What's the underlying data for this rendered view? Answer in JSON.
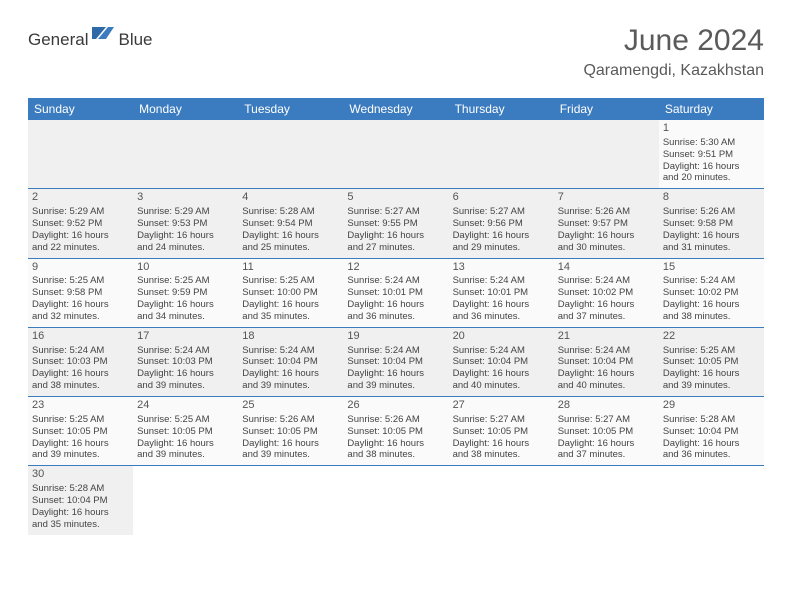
{
  "header": {
    "logo_part1": "General",
    "logo_part2": "Blue",
    "month_title": "June 2024",
    "location": "Qaramengdi, Kazakhstan"
  },
  "calendar": {
    "day_headers": [
      "Sunday",
      "Monday",
      "Tuesday",
      "Wednesday",
      "Thursday",
      "Friday",
      "Saturday"
    ],
    "header_bg": "#3b7bbf",
    "header_fg": "#ffffff",
    "border_color": "#3b7bbf",
    "row_bg_odd": "#fafafa",
    "row_bg_even": "#f0f0f0",
    "font_size_cell": 9.5,
    "weeks": [
      [
        null,
        null,
        null,
        null,
        null,
        null,
        {
          "n": "1",
          "sr": "Sunrise: 5:30 AM",
          "ss": "Sunset: 9:51 PM",
          "d1": "Daylight: 16 hours",
          "d2": "and 20 minutes."
        }
      ],
      [
        {
          "n": "2",
          "sr": "Sunrise: 5:29 AM",
          "ss": "Sunset: 9:52 PM",
          "d1": "Daylight: 16 hours",
          "d2": "and 22 minutes."
        },
        {
          "n": "3",
          "sr": "Sunrise: 5:29 AM",
          "ss": "Sunset: 9:53 PM",
          "d1": "Daylight: 16 hours",
          "d2": "and 24 minutes."
        },
        {
          "n": "4",
          "sr": "Sunrise: 5:28 AM",
          "ss": "Sunset: 9:54 PM",
          "d1": "Daylight: 16 hours",
          "d2": "and 25 minutes."
        },
        {
          "n": "5",
          "sr": "Sunrise: 5:27 AM",
          "ss": "Sunset: 9:55 PM",
          "d1": "Daylight: 16 hours",
          "d2": "and 27 minutes."
        },
        {
          "n": "6",
          "sr": "Sunrise: 5:27 AM",
          "ss": "Sunset: 9:56 PM",
          "d1": "Daylight: 16 hours",
          "d2": "and 29 minutes."
        },
        {
          "n": "7",
          "sr": "Sunrise: 5:26 AM",
          "ss": "Sunset: 9:57 PM",
          "d1": "Daylight: 16 hours",
          "d2": "and 30 minutes."
        },
        {
          "n": "8",
          "sr": "Sunrise: 5:26 AM",
          "ss": "Sunset: 9:58 PM",
          "d1": "Daylight: 16 hours",
          "d2": "and 31 minutes."
        }
      ],
      [
        {
          "n": "9",
          "sr": "Sunrise: 5:25 AM",
          "ss": "Sunset: 9:58 PM",
          "d1": "Daylight: 16 hours",
          "d2": "and 32 minutes."
        },
        {
          "n": "10",
          "sr": "Sunrise: 5:25 AM",
          "ss": "Sunset: 9:59 PM",
          "d1": "Daylight: 16 hours",
          "d2": "and 34 minutes."
        },
        {
          "n": "11",
          "sr": "Sunrise: 5:25 AM",
          "ss": "Sunset: 10:00 PM",
          "d1": "Daylight: 16 hours",
          "d2": "and 35 minutes."
        },
        {
          "n": "12",
          "sr": "Sunrise: 5:24 AM",
          "ss": "Sunset: 10:01 PM",
          "d1": "Daylight: 16 hours",
          "d2": "and 36 minutes."
        },
        {
          "n": "13",
          "sr": "Sunrise: 5:24 AM",
          "ss": "Sunset: 10:01 PM",
          "d1": "Daylight: 16 hours",
          "d2": "and 36 minutes."
        },
        {
          "n": "14",
          "sr": "Sunrise: 5:24 AM",
          "ss": "Sunset: 10:02 PM",
          "d1": "Daylight: 16 hours",
          "d2": "and 37 minutes."
        },
        {
          "n": "15",
          "sr": "Sunrise: 5:24 AM",
          "ss": "Sunset: 10:02 PM",
          "d1": "Daylight: 16 hours",
          "d2": "and 38 minutes."
        }
      ],
      [
        {
          "n": "16",
          "sr": "Sunrise: 5:24 AM",
          "ss": "Sunset: 10:03 PM",
          "d1": "Daylight: 16 hours",
          "d2": "and 38 minutes."
        },
        {
          "n": "17",
          "sr": "Sunrise: 5:24 AM",
          "ss": "Sunset: 10:03 PM",
          "d1": "Daylight: 16 hours",
          "d2": "and 39 minutes."
        },
        {
          "n": "18",
          "sr": "Sunrise: 5:24 AM",
          "ss": "Sunset: 10:04 PM",
          "d1": "Daylight: 16 hours",
          "d2": "and 39 minutes."
        },
        {
          "n": "19",
          "sr": "Sunrise: 5:24 AM",
          "ss": "Sunset: 10:04 PM",
          "d1": "Daylight: 16 hours",
          "d2": "and 39 minutes."
        },
        {
          "n": "20",
          "sr": "Sunrise: 5:24 AM",
          "ss": "Sunset: 10:04 PM",
          "d1": "Daylight: 16 hours",
          "d2": "and 40 minutes."
        },
        {
          "n": "21",
          "sr": "Sunrise: 5:24 AM",
          "ss": "Sunset: 10:04 PM",
          "d1": "Daylight: 16 hours",
          "d2": "and 40 minutes."
        },
        {
          "n": "22",
          "sr": "Sunrise: 5:25 AM",
          "ss": "Sunset: 10:05 PM",
          "d1": "Daylight: 16 hours",
          "d2": "and 39 minutes."
        }
      ],
      [
        {
          "n": "23",
          "sr": "Sunrise: 5:25 AM",
          "ss": "Sunset: 10:05 PM",
          "d1": "Daylight: 16 hours",
          "d2": "and 39 minutes."
        },
        {
          "n": "24",
          "sr": "Sunrise: 5:25 AM",
          "ss": "Sunset: 10:05 PM",
          "d1": "Daylight: 16 hours",
          "d2": "and 39 minutes."
        },
        {
          "n": "25",
          "sr": "Sunrise: 5:26 AM",
          "ss": "Sunset: 10:05 PM",
          "d1": "Daylight: 16 hours",
          "d2": "and 39 minutes."
        },
        {
          "n": "26",
          "sr": "Sunrise: 5:26 AM",
          "ss": "Sunset: 10:05 PM",
          "d1": "Daylight: 16 hours",
          "d2": "and 38 minutes."
        },
        {
          "n": "27",
          "sr": "Sunrise: 5:27 AM",
          "ss": "Sunset: 10:05 PM",
          "d1": "Daylight: 16 hours",
          "d2": "and 38 minutes."
        },
        {
          "n": "28",
          "sr": "Sunrise: 5:27 AM",
          "ss": "Sunset: 10:05 PM",
          "d1": "Daylight: 16 hours",
          "d2": "and 37 minutes."
        },
        {
          "n": "29",
          "sr": "Sunrise: 5:28 AM",
          "ss": "Sunset: 10:04 PM",
          "d1": "Daylight: 16 hours",
          "d2": "and 36 minutes."
        }
      ],
      [
        {
          "n": "30",
          "sr": "Sunrise: 5:28 AM",
          "ss": "Sunset: 10:04 PM",
          "d1": "Daylight: 16 hours",
          "d2": "and 35 minutes."
        },
        null,
        null,
        null,
        null,
        null,
        null
      ]
    ]
  }
}
